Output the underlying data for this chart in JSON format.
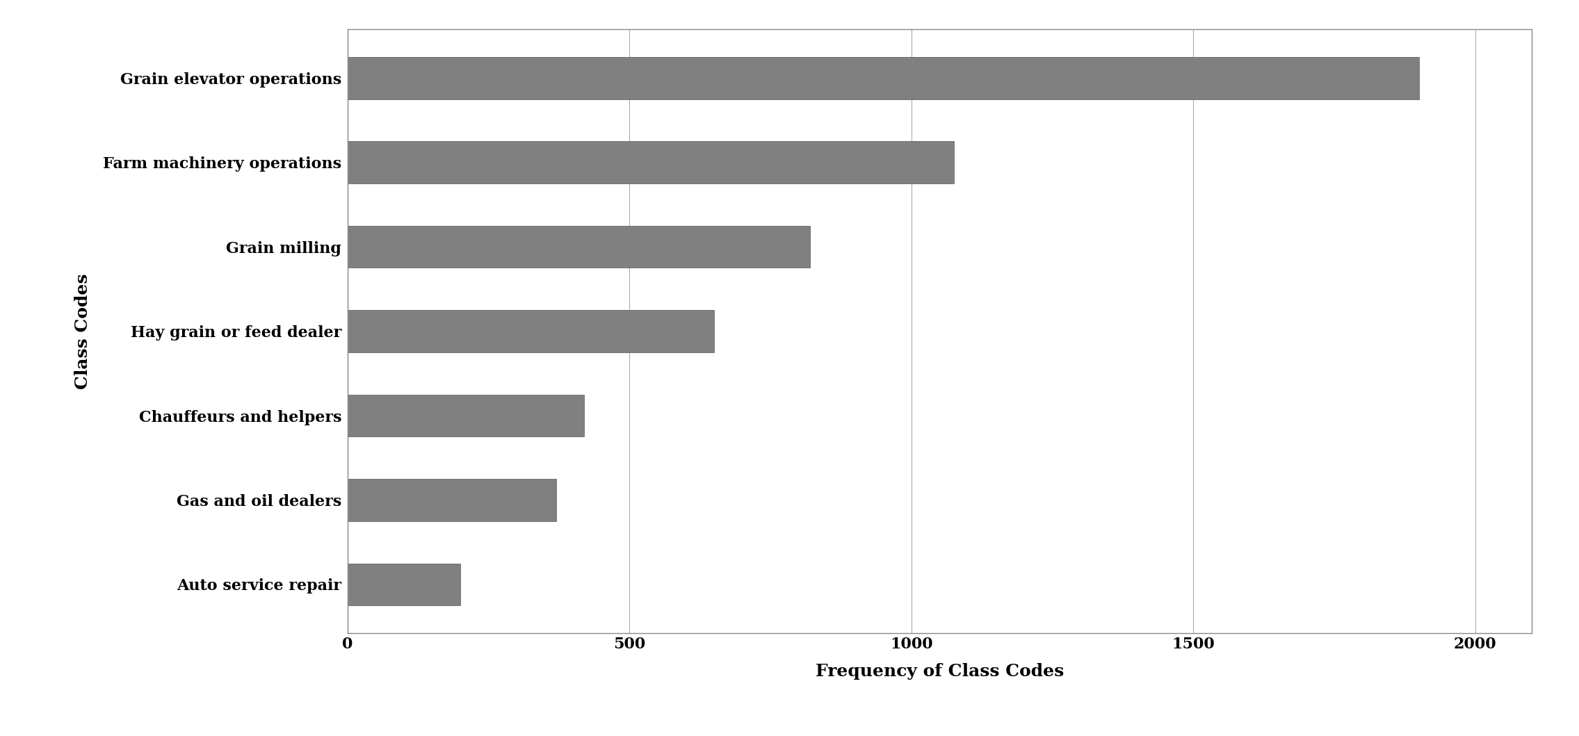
{
  "categories": [
    "Auto service repair",
    "Gas and oil dealers",
    "Chauffeurs and helpers",
    "Hay grain or feed dealer",
    "Grain milling",
    "Farm machinery operations",
    "Grain elevator operations"
  ],
  "values": [
    200,
    370,
    420,
    650,
    820,
    1075,
    1900
  ],
  "bar_color": "#808080",
  "xlabel": "Frequency of Class Codes",
  "ylabel": "Class Codes",
  "xlim": [
    0,
    2100
  ],
  "xticks": [
    0,
    500,
    1000,
    1500,
    2000
  ],
  "xtick_labels": [
    "0",
    "500",
    "1000",
    "1500",
    "2000"
  ],
  "background_color": "#ffffff",
  "bar_height": 0.5,
  "label_fontsize": 18,
  "tick_fontsize": 16,
  "ylabel_fontsize": 18,
  "grid_color": "#aaaaaa",
  "edge_color": "#555555",
  "outer_border_color": "#888888"
}
